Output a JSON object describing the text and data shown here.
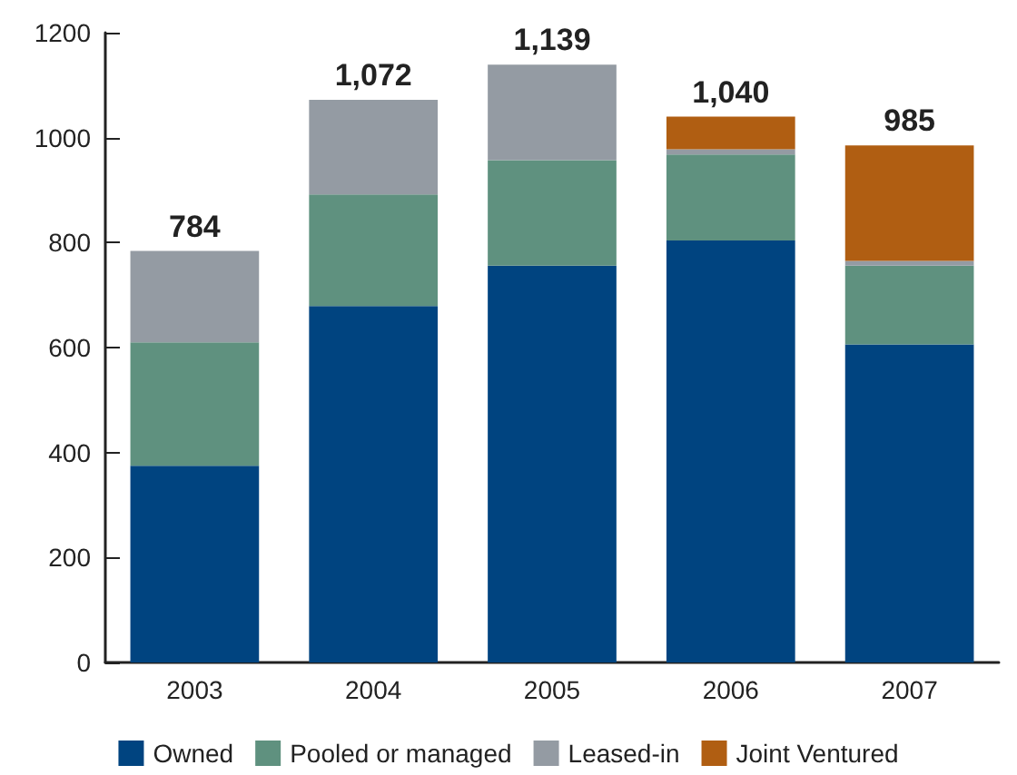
{
  "chart_data": {
    "type": "bar",
    "stacked": true,
    "categories": [
      "2003",
      "2004",
      "2005",
      "2006",
      "2007"
    ],
    "series": [
      {
        "name": "Owned",
        "color": "#004480",
        "values": [
          375,
          679,
          756,
          804,
          606
        ]
      },
      {
        "name": "Pooled or managed",
        "color": "#5f917f",
        "values": [
          235,
          213,
          201,
          164,
          150
        ]
      },
      {
        "name": "Leased-in",
        "color": "#949ba3",
        "values": [
          174,
          180,
          182,
          10,
          9
        ]
      },
      {
        "name": "Joint Ventured",
        "color": "#b05e12",
        "values": [
          null,
          null,
          null,
          62,
          220
        ]
      }
    ],
    "totals": [
      "784",
      "1,072",
      "1,139",
      "1,040",
      "985"
    ],
    "ylim": [
      0,
      1200
    ],
    "yticks": [
      0,
      200,
      400,
      600,
      800,
      1000,
      1200
    ],
    "grid": false,
    "legend": "bottom"
  }
}
